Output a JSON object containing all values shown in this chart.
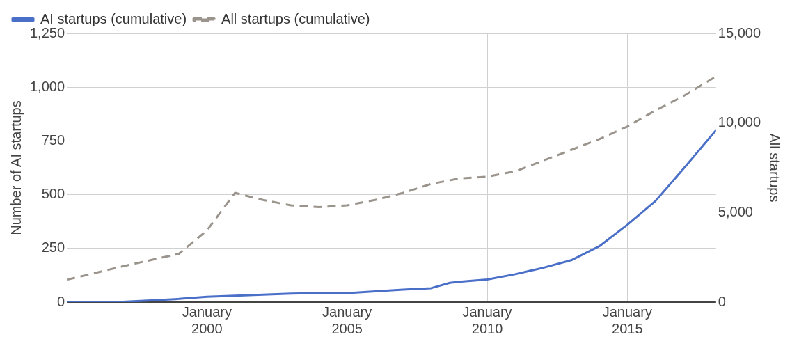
{
  "chart_data": {
    "type": "line",
    "ylabel": "Number of AI startups",
    "y2label": "All startups",
    "legend": "top left",
    "grid": true,
    "marker": "none",
    "xlim": [
      "1995-01",
      "2018-03"
    ],
    "xticks": [
      {
        "value": "2000-01",
        "label": "January 2000"
      },
      {
        "value": "2005-01",
        "label": "January 2005"
      },
      {
        "value": "2010-01",
        "label": "January 2010"
      },
      {
        "value": "2015-01",
        "label": "January 2015"
      }
    ],
    "ylim": [
      0,
      1250
    ],
    "yticks": [
      0,
      {
        "value": 250,
        "label": "250"
      },
      {
        "value": 500,
        "label": "500"
      },
      {
        "value": 750,
        "label": "750"
      },
      {
        "value": 1000,
        "label": "1,000"
      },
      {
        "value": 1250,
        "label": "1,250"
      }
    ],
    "y2lim": [
      0,
      15000
    ],
    "y2ticks": [
      0,
      {
        "value": 5000,
        "label": "5,000"
      },
      {
        "value": 10000,
        "label": "10,000"
      },
      {
        "value": 15000,
        "label": "15,000"
      }
    ],
    "series": [
      {
        "name": "AI startups (cumulative)",
        "color": "#4a6fc8",
        "line_style": "solid",
        "x": [
          "1995-01",
          "1997-01",
          "1998-01",
          "1999-01",
          "2000-01",
          "2001-01",
          "2002-01",
          "2003-01",
          "2004-01",
          "2005-01",
          "2006-01",
          "2007-01",
          "2008-01",
          "2008-09",
          "2009-01",
          "2010-01",
          "2011-01",
          "2012-01",
          "2013-01",
          "2014-01",
          "2015-01",
          "2016-01",
          "2017-01",
          "2018-03"
        ],
        "values": [
          0,
          2,
          8,
          15,
          25,
          30,
          35,
          40,
          42,
          42,
          50,
          58,
          65,
          90,
          95,
          105,
          130,
          160,
          195,
          260,
          360,
          470,
          620,
          800
        ]
      },
      {
        "name": "All startups (cumulative)",
        "color": "#9a948c",
        "line_style": "dashed",
        "axis": "y2",
        "x": [
          "1995-01",
          "1997-01",
          "1999-01",
          "2000-01",
          "2001-01",
          "2002-01",
          "2003-01",
          "2004-01",
          "2005-01",
          "2006-01",
          "2007-01",
          "2008-01",
          "2009-01",
          "2010-01",
          "2011-01",
          "2012-01",
          "2013-01",
          "2014-01",
          "2015-01",
          "2016-01",
          "2017-01",
          "2018-03"
        ],
        "values": [
          1250,
          2000,
          2700,
          4000,
          6100,
          5700,
          5400,
          5300,
          5400,
          5700,
          6100,
          6600,
          6900,
          7000,
          7300,
          7900,
          8500,
          9100,
          9800,
          10700,
          11500,
          12600
        ]
      }
    ]
  }
}
